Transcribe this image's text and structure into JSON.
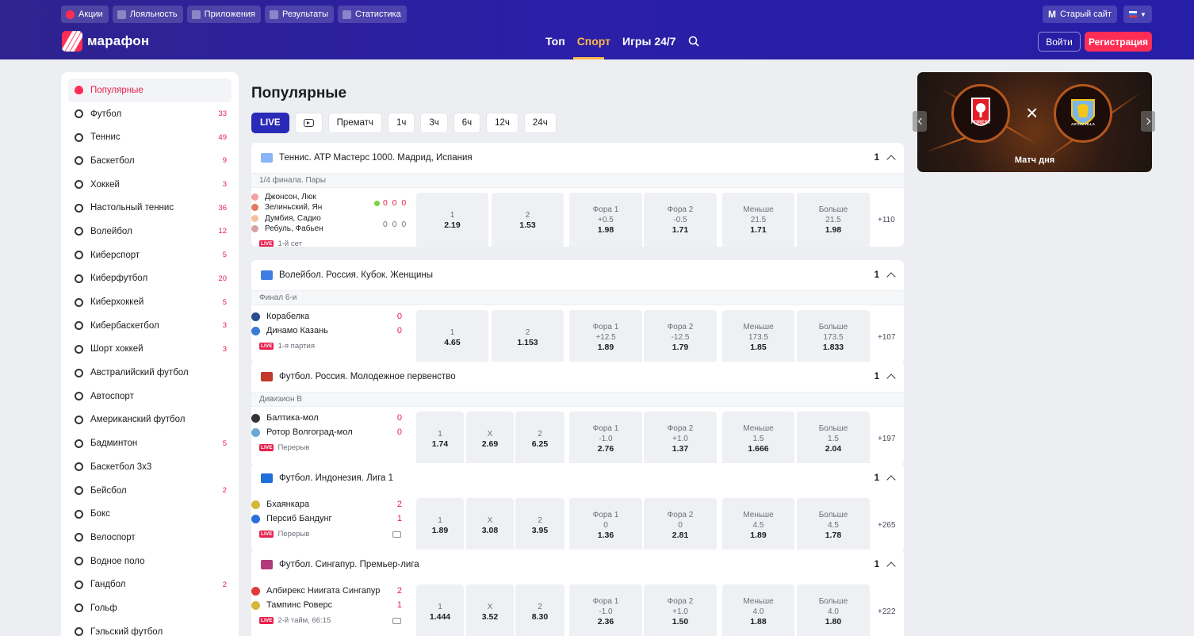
{
  "header": {
    "top_links": [
      "Акции",
      "Лояльность",
      "Приложения",
      "Результаты",
      "Статистика"
    ],
    "old_site": "Старый сайт",
    "old_site_letter": "M",
    "logo_text": "марафон",
    "nav": [
      "Топ",
      "Спорт",
      "Игры 24/7"
    ],
    "active_nav": "Спорт",
    "login": "Войти",
    "register": "Регистрация"
  },
  "sidebar": {
    "items": [
      {
        "label": "Популярные",
        "count": ""
      },
      {
        "label": "Футбол",
        "count": "33"
      },
      {
        "label": "Теннис",
        "count": "49"
      },
      {
        "label": "Баскетбол",
        "count": "9"
      },
      {
        "label": "Хоккей",
        "count": "3"
      },
      {
        "label": "Настольный теннис",
        "count": "36"
      },
      {
        "label": "Волейбол",
        "count": "12"
      },
      {
        "label": "Киберспорт",
        "count": "5"
      },
      {
        "label": "Киберфутбол",
        "count": "20"
      },
      {
        "label": "Киберхоккей",
        "count": "5"
      },
      {
        "label": "Кибербаскетбол",
        "count": "3"
      },
      {
        "label": "Шорт хоккей",
        "count": "3"
      },
      {
        "label": "Австралийский футбол",
        "count": ""
      },
      {
        "label": "Автоспорт",
        "count": ""
      },
      {
        "label": "Американский футбол",
        "count": ""
      },
      {
        "label": "Бадминтон",
        "count": "5"
      },
      {
        "label": "Баскетбол 3х3",
        "count": ""
      },
      {
        "label": "Бейсбол",
        "count": "2"
      },
      {
        "label": "Бокс",
        "count": ""
      },
      {
        "label": "Велоспорт",
        "count": ""
      },
      {
        "label": "Водное поло",
        "count": ""
      },
      {
        "label": "Гандбол",
        "count": "2"
      },
      {
        "label": "Гольф",
        "count": ""
      },
      {
        "label": "Гэльский футбол",
        "count": ""
      }
    ]
  },
  "main": {
    "title": "Популярные",
    "filters": [
      "LIVE",
      "",
      "Прематч",
      "1ч",
      "3ч",
      "6ч",
      "12ч",
      "24ч"
    ],
    "live_badge": "LIVE",
    "events": [
      {
        "league": "Теннис. ATP Мастерс 1000. Мадрид, Испания",
        "count": "1",
        "stage": "1/4 финала. Пары",
        "teams": [
          "Джонсон, Люк",
          "Зелиньский, Ян",
          "Думбия, Садио",
          "Ребуль, Фабьен"
        ],
        "scores": [
          "0  0  0",
          "0  0  0"
        ],
        "status": "1-й сет",
        "odds": [
          {
            "l": "1",
            "h": "",
            "v": "2.19"
          },
          {
            "l": "2",
            "h": "",
            "v": "1.53"
          },
          {
            "l": "Фора 1",
            "h": "+0.5",
            "v": "1.98"
          },
          {
            "l": "Фора 2",
            "h": "-0.5",
            "v": "1.71"
          },
          {
            "l": "Меньше",
            "h": "21.5",
            "v": "1.71"
          },
          {
            "l": "Больше",
            "h": "21.5",
            "v": "1.98"
          }
        ],
        "more": "+110"
      },
      {
        "league": "Волейбол. Россия. Кубок. Женщины",
        "count": "1",
        "stage": "Финал 6-и",
        "teams": [
          "Корабелка",
          "Динамо Казань"
        ],
        "scores": [
          "0",
          "0"
        ],
        "status": "1-я партия",
        "odds": [
          {
            "l": "1",
            "h": "",
            "v": "4.65"
          },
          {
            "l": "2",
            "h": "",
            "v": "1.153"
          },
          {
            "l": "Фора 1",
            "h": "+12.5",
            "v": "1.89"
          },
          {
            "l": "Фора 2",
            "h": "-12.5",
            "v": "1.79"
          },
          {
            "l": "Меньше",
            "h": "173.5",
            "v": "1.85"
          },
          {
            "l": "Больше",
            "h": "173.5",
            "v": "1.833"
          }
        ],
        "more": "+107"
      },
      {
        "league": "Футбол. Россия. Молодежное первенство",
        "count": "1",
        "stage": "Дивизион B",
        "teams": [
          "Балтика-мол",
          "Ротор Волгоград-мол"
        ],
        "scores": [
          "0",
          "0"
        ],
        "status": "Перерыв",
        "odds": [
          {
            "l": "1",
            "h": "",
            "v": "1.74"
          },
          {
            "l": "X",
            "h": "",
            "v": "2.69"
          },
          {
            "l": "2",
            "h": "",
            "v": "6.25"
          },
          {
            "l": "Фора 1",
            "h": "-1.0",
            "v": "2.76"
          },
          {
            "l": "Фора 2",
            "h": "+1.0",
            "v": "1.37"
          },
          {
            "l": "Меньше",
            "h": "1.5",
            "v": "1.666"
          },
          {
            "l": "Больше",
            "h": "1.5",
            "v": "2.04"
          }
        ],
        "more": "+197"
      },
      {
        "league": "Футбол. Индонезия. Лига 1",
        "count": "1",
        "stage": "",
        "teams": [
          "Бхаянкара",
          "Персиб Бандунг"
        ],
        "scores": [
          "2",
          "1"
        ],
        "status": "Перерыв",
        "odds": [
          {
            "l": "1",
            "h": "",
            "v": "1.89"
          },
          {
            "l": "X",
            "h": "",
            "v": "3.08"
          },
          {
            "l": "2",
            "h": "",
            "v": "3.95"
          },
          {
            "l": "Фора 1",
            "h": "0",
            "v": "1.36"
          },
          {
            "l": "Фора 2",
            "h": "0",
            "v": "2.81"
          },
          {
            "l": "Меньше",
            "h": "4.5",
            "v": "1.89"
          },
          {
            "l": "Больше",
            "h": "4.5",
            "v": "1.78"
          }
        ],
        "more": "+265"
      },
      {
        "league": "Футбол. Сингапур. Премьер-лига",
        "count": "1",
        "stage": "",
        "teams": [
          "Албирекс Ниигата Сингапур",
          "Тампинс Роверс"
        ],
        "scores": [
          "2",
          "1"
        ],
        "status": "2-й тайм, 66:15",
        "odds": [
          {
            "l": "1",
            "h": "",
            "v": "1.444"
          },
          {
            "l": "X",
            "h": "",
            "v": "3.52"
          },
          {
            "l": "2",
            "h": "",
            "v": "8.30"
          },
          {
            "l": "Фора 1",
            "h": "-1.0",
            "v": "2.36"
          },
          {
            "l": "Фора 2",
            "h": "+1.0",
            "v": "1.50"
          },
          {
            "l": "Меньше",
            "h": "4.0",
            "v": "1.88"
          },
          {
            "l": "Больше",
            "h": "4.0",
            "v": "1.80"
          }
        ],
        "more": "+222"
      }
    ]
  },
  "banner": {
    "vs": "×",
    "caption": "Матч дня",
    "home_crest_text": "FOREST",
    "away_crest_text": "ASTON VILLA"
  },
  "colors": {
    "header": "#2a1fa6",
    "accent": "#ff2d55",
    "active_nav": "#ffb74d",
    "live_button": "#2a2ab8"
  }
}
